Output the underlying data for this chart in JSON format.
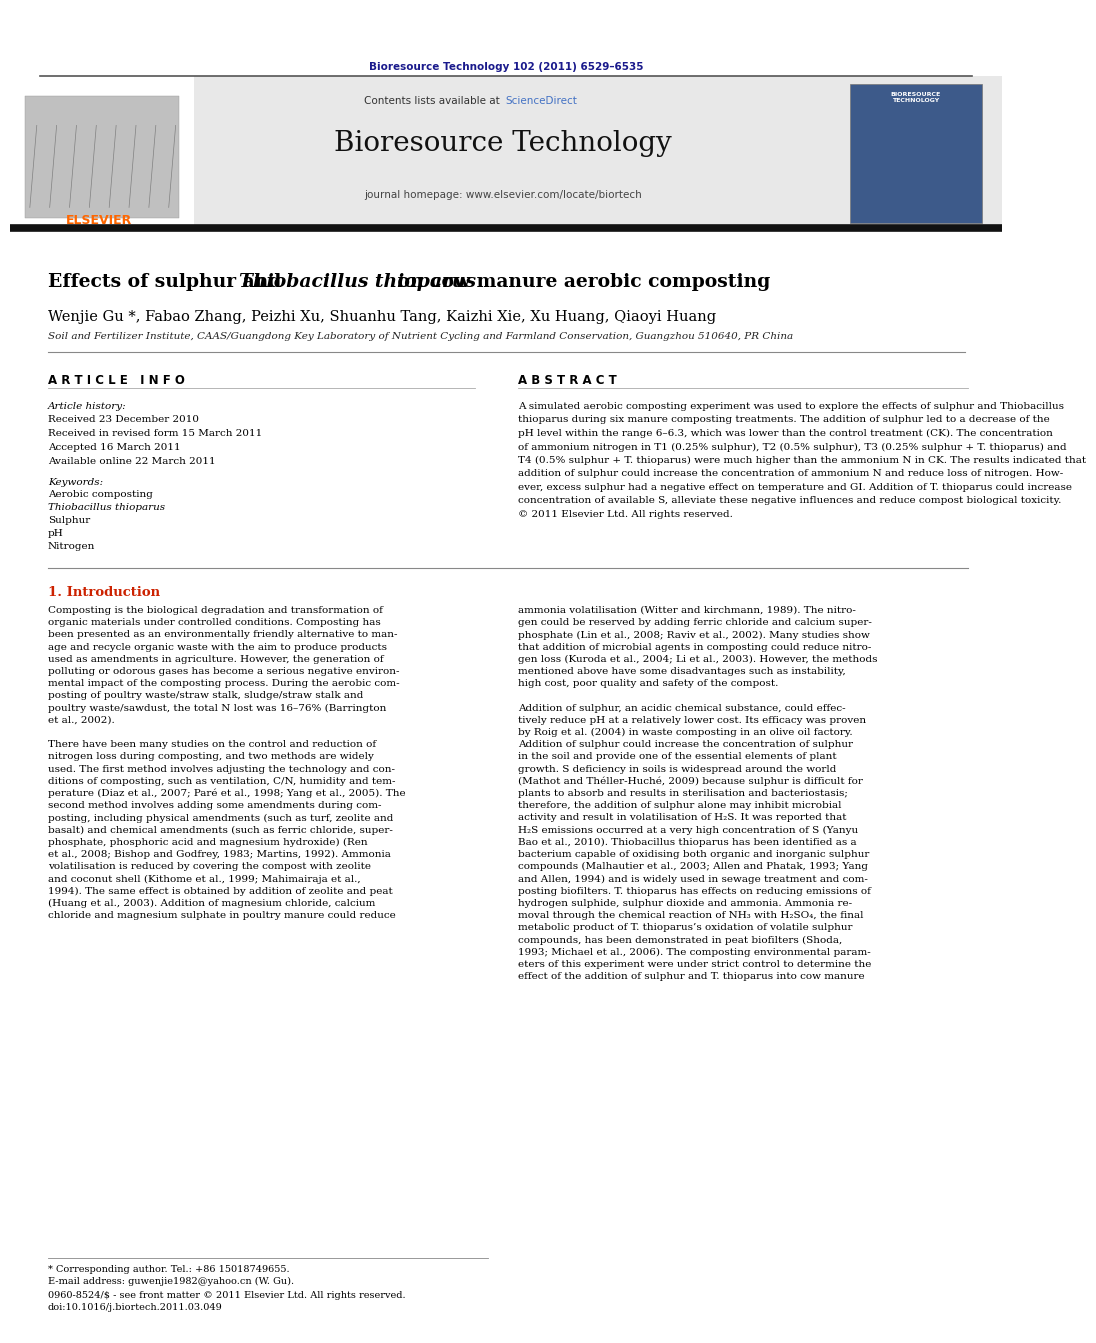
{
  "background_color": "#ffffff",
  "page_width": 9.92,
  "page_height": 13.23,
  "journal_ref": "Bioresource Technology 102 (2011) 6529–6535",
  "journal_ref_color": "#1a1a8c",
  "header_bg": "#e8e8e8",
  "header_journal_name": "Bioresource Technology",
  "header_contents_line": "Contents lists available at ScienceDirect",
  "header_sciencedirect_color": "#4472c4",
  "header_homepage": "journal homepage: www.elsevier.com/locate/biortech",
  "elsevier_color": "#ff6600",
  "elsevier_text": "ELSEVIER",
  "title_part1": "Effects of sulphur and ",
  "title_italic": "Thiobacillus thioparus",
  "title_part2": " on cow manure aerobic composting",
  "authors": "Wenjie Gu *, Fabao Zhang, Peizhi Xu, Shuanhu Tang, Kaizhi Xie, Xu Huang, Qiaoyi Huang",
  "affiliation": "Soil and Fertilizer Institute, CAAS/Guangdong Key Laboratory of Nutrient Cycling and Farmland Conservation, Guangzhou 510640, PR China",
  "article_info_header": "A R T I C L E   I N F O",
  "abstract_header": "A B S T R A C T",
  "article_history_label": "Article history:",
  "received1": "Received 23 December 2010",
  "received2": "Received in revised form 15 March 2011",
  "accepted": "Accepted 16 March 2011",
  "available": "Available online 22 March 2011",
  "keywords_label": "Keywords:",
  "keyword1": "Aerobic composting",
  "keyword2": "Thiobacillus thioparus",
  "keyword3": "Sulphur",
  "keyword4": "pH",
  "keyword5": "Nitrogen",
  "footer_text1": "* Corresponding author. Tel.: +86 15018749655.",
  "footer_text2": "E-mail address: guwenjie1982@yahoo.cn (W. Gu).",
  "footer_text3": "0960-8524/$ - see front matter © 2011 Elsevier Ltd. All rights reserved.",
  "footer_text4": "doi:10.1016/j.biortech.2011.03.049",
  "dark_navy": "#1a1a8c",
  "elsevier_orange": "#ff6600",
  "sciencedirect_blue": "#4472c4",
  "intro_red": "#cc2200",
  "abstract_lines": [
    "A simulated aerobic composting experiment was used to explore the effects of sulphur and Thiobacillus",
    "thioparus during six manure composting treatments. The addition of sulphur led to a decrease of the",
    "pH level within the range 6–6.3, which was lower than the control treatment (CK). The concentration",
    "of ammonium nitrogen in T1 (0.25% sulphur), T2 (0.5% sulphur), T3 (0.25% sulphur + T. thioparus) and",
    "T4 (0.5% sulphur + T. thioparus) were much higher than the ammonium N in CK. The results indicated that",
    "addition of sulphur could increase the concentration of ammonium N and reduce loss of nitrogen. How-",
    "ever, excess sulphur had a negative effect on temperature and GI. Addition of T. thioparus could increase",
    "concentration of available S, alleviate these negative influences and reduce compost biological toxicity.",
    "© 2011 Elsevier Ltd. All rights reserved."
  ],
  "intro_col1_lines": [
    "Composting is the biological degradation and transformation of",
    "organic materials under controlled conditions. Composting has",
    "been presented as an environmentally friendly alternative to man-",
    "age and recycle organic waste with the aim to produce products",
    "used as amendments in agriculture. However, the generation of",
    "polluting or odorous gases has become a serious negative environ-",
    "mental impact of the composting process. During the aerobic com-",
    "posting of poultry waste/straw stalk, sludge/straw stalk and",
    "poultry waste/sawdust, the total N lost was 16–76% (Barrington",
    "et al., 2002).",
    "",
    "There have been many studies on the control and reduction of",
    "nitrogen loss during composting, and two methods are widely",
    "used. The first method involves adjusting the technology and con-",
    "ditions of composting, such as ventilation, C/N, humidity and tem-",
    "perature (Diaz et al., 2007; Paré et al., 1998; Yang et al., 2005). The",
    "second method involves adding some amendments during com-",
    "posting, including physical amendments (such as turf, zeolite and",
    "basalt) and chemical amendments (such as ferric chloride, super-",
    "phosphate, phosphoric acid and magnesium hydroxide) (Ren",
    "et al., 2008; Bishop and Godfrey, 1983; Martins, 1992). Ammonia",
    "volatilisation is reduced by covering the compost with zeolite",
    "and coconut shell (Kithome et al., 1999; Mahimairaja et al.,",
    "1994). The same effect is obtained by addition of zeolite and peat",
    "(Huang et al., 2003). Addition of magnesium chloride, calcium",
    "chloride and magnesium sulphate in poultry manure could reduce"
  ],
  "intro_col2_lines": [
    "ammonia volatilisation (Witter and kirchmann, 1989). The nitro-",
    "gen could be reserved by adding ferric chloride and calcium super-",
    "phosphate (Lin et al., 2008; Raviv et al., 2002). Many studies show",
    "that addition of microbial agents in composting could reduce nitro-",
    "gen loss (Kuroda et al., 2004; Li et al., 2003). However, the methods",
    "mentioned above have some disadvantages such as instability,",
    "high cost, poor quality and safety of the compost.",
    "",
    "Addition of sulphur, an acidic chemical substance, could effec-",
    "tively reduce pH at a relatively lower cost. Its efficacy was proven",
    "by Roig et al. (2004) in waste composting in an olive oil factory.",
    "Addition of sulphur could increase the concentration of sulphur",
    "in the soil and provide one of the essential elements of plant",
    "growth. S deficiency in soils is widespread around the world",
    "(Mathot and Théller-Huché, 2009) because sulphur is difficult for",
    "plants to absorb and results in sterilisation and bacteriostasis;",
    "therefore, the addition of sulphur alone may inhibit microbial",
    "activity and result in volatilisation of H₂S. It was reported that",
    "H₂S emissions occurred at a very high concentration of S (Yanyu",
    "Bao et al., 2010). Thiobacillus thioparus has been identified as a",
    "bacterium capable of oxidising both organic and inorganic sulphur",
    "compounds (Malhautier et al., 2003; Allen and Phatak, 1993; Yang",
    "and Allen, 1994) and is widely used in sewage treatment and com-",
    "posting biofilters. T. thioparus has effects on reducing emissions of",
    "hydrogen sulphide, sulphur dioxide and ammonia. Ammonia re-",
    "moval through the chemical reaction of NH₃ with H₂SO₄, the final",
    "metabolic product of T. thioparus’s oxidation of volatile sulphur",
    "compounds, has been demonstrated in peat biofilters (Shoda,",
    "1993; Michael et al., 2006). The composting environmental param-",
    "eters of this experiment were under strict control to determine the",
    "effect of the addition of sulphur and T. thioparus into cow manure"
  ]
}
